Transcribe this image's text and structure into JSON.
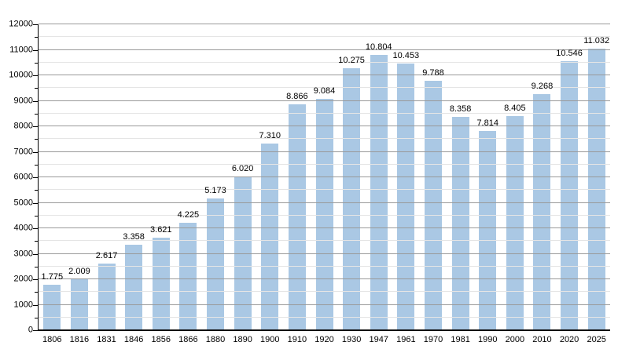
{
  "chart_data": {
    "type": "bar",
    "title": "",
    "xlabel": "",
    "ylabel": "",
    "categories": [
      "1806",
      "1816",
      "1831",
      "1846",
      "1856",
      "1866",
      "1880",
      "1890",
      "1900",
      "1910",
      "1920",
      "1930",
      "1947",
      "1961",
      "1970",
      "1981",
      "1990",
      "2000",
      "2010",
      "2020",
      "2025"
    ],
    "values": [
      1775,
      2009,
      2617,
      3358,
      3621,
      4225,
      5173,
      6020,
      7310,
      8866,
      9084,
      10275,
      10804,
      10453,
      9788,
      8358,
      7814,
      8405,
      9268,
      10546,
      11032
    ],
    "value_labels": [
      "1.775",
      "2.009",
      "2.617",
      "3.358",
      "3.621",
      "4.225",
      "5.173",
      "6.020",
      "7.310",
      "8.866",
      "9.084",
      "10.275",
      "10.804",
      "10.453",
      "9.788",
      "8.358",
      "7.814",
      "8.405",
      "9.268",
      "10.546",
      "11.032"
    ],
    "y_tick_labels": [
      "0",
      "1000",
      "2000",
      "3000",
      "4000",
      "5000",
      "6000",
      "7000",
      "8000",
      "9000",
      "10000",
      "11000",
      "12000"
    ],
    "ylim": [
      0,
      12000
    ],
    "y_major_step": 1000,
    "y_minor_step": 500,
    "grid": true,
    "legend": "none",
    "colors": {
      "bar": "#aac8e4",
      "major_grid": "#999999",
      "minor_grid": "#e5e5e5",
      "axis": "#000000",
      "text": "#000000",
      "background": "#ffffff"
    }
  }
}
